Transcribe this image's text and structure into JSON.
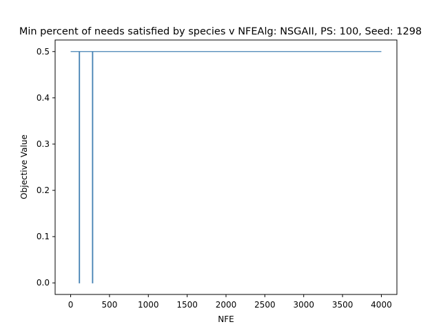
{
  "chart_data": {
    "type": "line",
    "title": "Min percent of needs satisfied by species v NFEAlg: NSGAII, PS: 100, Seed: 1298",
    "xlabel": "NFE",
    "ylabel": "Objective Value",
    "xlim": [
      -200,
      4200
    ],
    "ylim": [
      -0.025,
      0.525
    ],
    "xticks": [
      0,
      500,
      1000,
      1500,
      2000,
      2500,
      3000,
      3500,
      4000
    ],
    "xtick_labels": [
      "0",
      "500",
      "1000",
      "1500",
      "2000",
      "2500",
      "3000",
      "3500",
      "4000"
    ],
    "yticks": [
      0.0,
      0.1,
      0.2,
      0.3,
      0.4,
      0.5
    ],
    "ytick_labels": [
      "0.0",
      "0.1",
      "0.2",
      "0.3",
      "0.4",
      "0.5"
    ],
    "grid": false,
    "line_color": "#4682b4",
    "series": [
      {
        "x": [
          0,
          100,
          110,
          110,
          115,
          115,
          280,
          280,
          285,
          285,
          4000
        ],
        "y": [
          0.5,
          0.5,
          0.5,
          0.0,
          0.0,
          0.5,
          0.5,
          0.0,
          0.0,
          0.5,
          0.5
        ]
      }
    ]
  }
}
